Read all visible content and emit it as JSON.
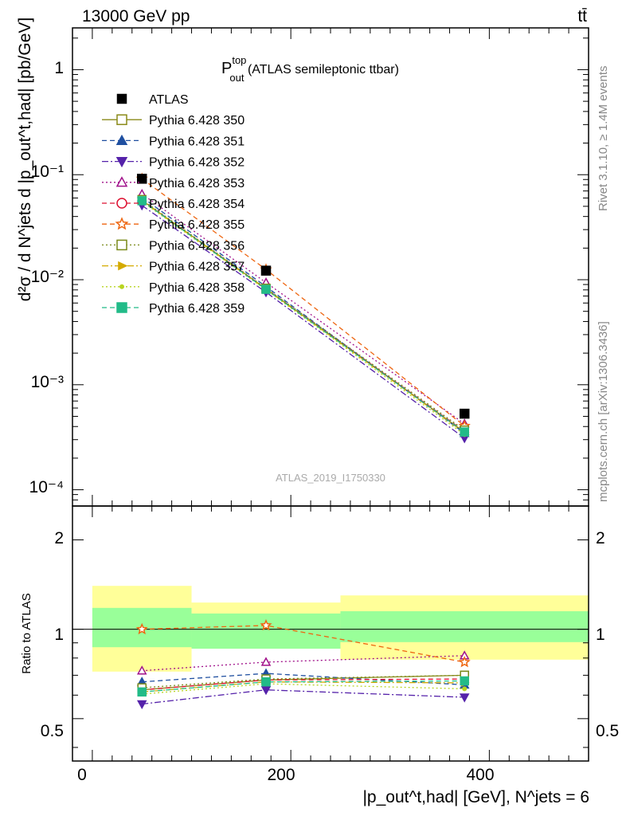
{
  "header": {
    "left": "13000 GeV pp",
    "right": "tt̄"
  },
  "side_labels": {
    "rivet": "Rivet 3.1.10, ≥ 1.4M events",
    "mcplots": "mcplots.cern.ch [arXiv:1306.3436]"
  },
  "plot_title": {
    "main": "P",
    "sup": "top",
    "sub": "out",
    "rest": " (ATLAS semileptonic ttbar)"
  },
  "analysis_id": "ATLAS_2019_I1750330",
  "ylabel_main": "d²σ / d N^jets d |p_out^t,had| [pb/GeV]",
  "ylabel_ratio": "Ratio to ATLAS",
  "xlabel": "|p_out^t,had| [GeV], N^jets = 6",
  "ticks": {
    "main_y": [
      "10⁻⁴",
      "10⁻³",
      "10⁻²",
      "10⁻¹",
      "1"
    ],
    "ratio_y": [
      "0.5",
      "1",
      "2"
    ],
    "x": [
      "0",
      "200",
      "400"
    ]
  },
  "chart_data": [
    {
      "type": "line",
      "panel": "main",
      "yscale": "log",
      "xlim": [
        -20,
        500
      ],
      "ylim": [
        7e-05,
        2.5
      ],
      "x": [
        50,
        175,
        375
      ],
      "reference": {
        "name": "ATLAS",
        "values": [
          0.0915,
          0.0122,
          0.00053
        ],
        "color": "#000000",
        "marker": "square"
      },
      "series": [
        {
          "name": "Pythia 6.428 350",
          "color": "#8a8a18",
          "marker": "open-square",
          "dash": "solid",
          "values": [
            0.057,
            0.0082,
            0.000355
          ]
        },
        {
          "name": "Pythia 6.428 351",
          "color": "#1f4fa0",
          "marker": "filled-triangle-up",
          "dash": "dash",
          "values": [
            0.061,
            0.0086,
            0.000345
          ]
        },
        {
          "name": "Pythia 6.428 352",
          "color": "#5522aa",
          "marker": "filled-triangle-down",
          "dash": "dashdot",
          "values": [
            0.051,
            0.0076,
            0.00031
          ]
        },
        {
          "name": "Pythia 6.428 353",
          "color": "#a0108a",
          "marker": "open-triangle-up",
          "dash": "dot",
          "values": [
            0.0655,
            0.0094,
            0.000425
          ]
        },
        {
          "name": "Pythia 6.428 354",
          "color": "#dd1030",
          "marker": "open-circle",
          "dash": "dash",
          "values": [
            0.057,
            0.0082,
            0.00036
          ]
        },
        {
          "name": "Pythia 6.428 355",
          "color": "#ee6611",
          "marker": "open-star",
          "dash": "dash",
          "values": [
            0.0915,
            0.0125,
            0.000405
          ]
        },
        {
          "name": "Pythia 6.428 356",
          "color": "#7a8a1a",
          "marker": "open-square",
          "dash": "dot",
          "values": [
            0.058,
            0.0083,
            0.00037
          ]
        },
        {
          "name": "Pythia 6.428 357",
          "color": "#d4aa00",
          "marker": "filled-triangle-right",
          "dash": "dashdot",
          "values": [
            0.0565,
            0.0081,
            0.00035
          ]
        },
        {
          "name": "Pythia 6.428 358",
          "color": "#b8d420",
          "marker": "small-dot",
          "dash": "dot",
          "values": [
            0.0555,
            0.008,
            0.000335
          ]
        },
        {
          "name": "Pythia 6.428 359",
          "color": "#22bb88",
          "marker": "filled-square",
          "dash": "dash",
          "values": [
            0.0565,
            0.0081,
            0.000355
          ]
        }
      ]
    },
    {
      "type": "line",
      "panel": "ratio",
      "ylabel": "Ratio to ATLAS",
      "xlim": [
        -20,
        500
      ],
      "ylim": [
        0.36,
        2.6
      ],
      "yscale": "log",
      "x": [
        50,
        175,
        375
      ],
      "bands": [
        {
          "x0": 0,
          "x1": 100,
          "green": [
            0.87,
            1.18
          ],
          "yellow": [
            0.72,
            1.4
          ]
        },
        {
          "x0": 100,
          "x1": 250,
          "green": [
            0.86,
            1.13
          ],
          "yellow": [
            0.86,
            1.23
          ]
        },
        {
          "x0": 250,
          "x1": 500,
          "green": [
            0.905,
            1.15
          ],
          "yellow": [
            0.79,
            1.3
          ]
        }
      ],
      "series": [
        {
          "name": "Pythia 6.428 350",
          "values": [
            0.625,
            0.675,
            0.7
          ]
        },
        {
          "name": "Pythia 6.428 351",
          "values": [
            0.665,
            0.71,
            0.65
          ]
        },
        {
          "name": "Pythia 6.428 352",
          "values": [
            0.56,
            0.625,
            0.59
          ]
        },
        {
          "name": "Pythia 6.428 353",
          "values": [
            0.725,
            0.775,
            0.815
          ]
        },
        {
          "name": "Pythia 6.428 354",
          "values": [
            0.625,
            0.675,
            0.68
          ]
        },
        {
          "name": "Pythia 6.428 355",
          "values": [
            1.0,
            1.03,
            0.775
          ]
        },
        {
          "name": "Pythia 6.428 356",
          "values": [
            0.635,
            0.68,
            0.7
          ]
        },
        {
          "name": "Pythia 6.428 357",
          "values": [
            0.615,
            0.665,
            0.66
          ]
        },
        {
          "name": "Pythia 6.428 358",
          "values": [
            0.605,
            0.655,
            0.63
          ]
        },
        {
          "name": "Pythia 6.428 359",
          "values": [
            0.615,
            0.665,
            0.67
          ]
        }
      ]
    }
  ]
}
